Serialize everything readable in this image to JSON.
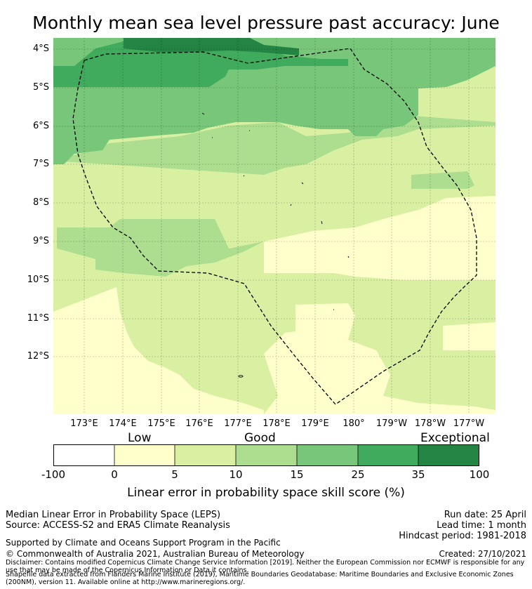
{
  "title": "Monthly mean sea level pressure past accuracy: June",
  "map": {
    "lat_labels": [
      "4°S",
      "5°S",
      "6°S",
      "7°S",
      "8°S",
      "9°S",
      "10°S",
      "11°S",
      "12°S"
    ],
    "lon_labels": [
      "173°E",
      "174°E",
      "175°E",
      "176°E",
      "177°E",
      "178°E",
      "179°E",
      "180°",
      "179°W",
      "178°W",
      "177°W"
    ],
    "colors": {
      "c1": "#ffffcc",
      "c2": "#d9f0a3",
      "c3": "#addd8e",
      "c4": "#78c679",
      "c5": "#41ab5d",
      "c6": "#238443",
      "boundary": "#000000"
    }
  },
  "colorbar": {
    "categories": [
      "Low",
      "Good",
      "Exceptional"
    ],
    "ticks": [
      "-100",
      "0",
      "5",
      "10",
      "15",
      "25",
      "35",
      "100"
    ],
    "colors": [
      "#ffffff",
      "#ffffcc",
      "#d9f0a3",
      "#addd8e",
      "#78c679",
      "#41ab5d",
      "#238443"
    ],
    "label": "Linear error in probability space skill score (%)"
  },
  "footer": {
    "line1": "Median Linear Error in Probability Space (LEPS)",
    "line2": "Source: ACCESS-S2 and ERA5 Climate Reanalysis",
    "run_date": "Run date: 25 April",
    "lead_time": "Lead time: 1 month",
    "hindcast": "Hindcast period: 1981-2018",
    "supported": "Supported by Climate and Oceans Support Program in the Pacific",
    "copyright": "© Commonwealth of Australia 2021, Australian Bureau of Meteorology",
    "created": "Created: 27/10/2021",
    "disclaimer": "Disclaimer: Contains modified Copernicus Climate Change Service Information [2019]. Neither the European Commission nor ECMWF is responsible for any use that may be made of the Copernicus Information or Data it contains.",
    "shapefile": "Shapefile data extracted from Flanders Marine Institute (2019), Maritime Boundaries Geodatabase: Maritime Boundaries and Exclusive Economic Zones (200NM), version 11. Available online at http://www.marineregions.org/."
  }
}
